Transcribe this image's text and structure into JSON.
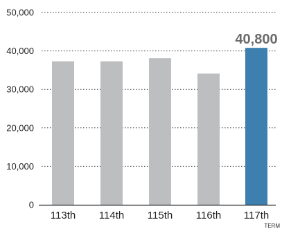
{
  "chart_data": {
    "type": "bar",
    "categories": [
      "113th",
      "114th",
      "115th",
      "116th",
      "117th"
    ],
    "values": [
      37300,
      37300,
      38100,
      34100,
      40800
    ],
    "highlight_index": 4,
    "highlight_label": "40,800",
    "ylim": [
      0,
      50000
    ],
    "yticks": [
      0,
      10000,
      20000,
      30000,
      40000,
      50000
    ],
    "ytick_labels": [
      "0",
      "10,000",
      "20,000",
      "30,000",
      "40,000",
      "50,000"
    ],
    "xlabel": "TERM",
    "ylabel": "",
    "title": "",
    "grid": true,
    "colors": {
      "bar": "#bcbec0",
      "highlight": "#3d7fae"
    }
  }
}
